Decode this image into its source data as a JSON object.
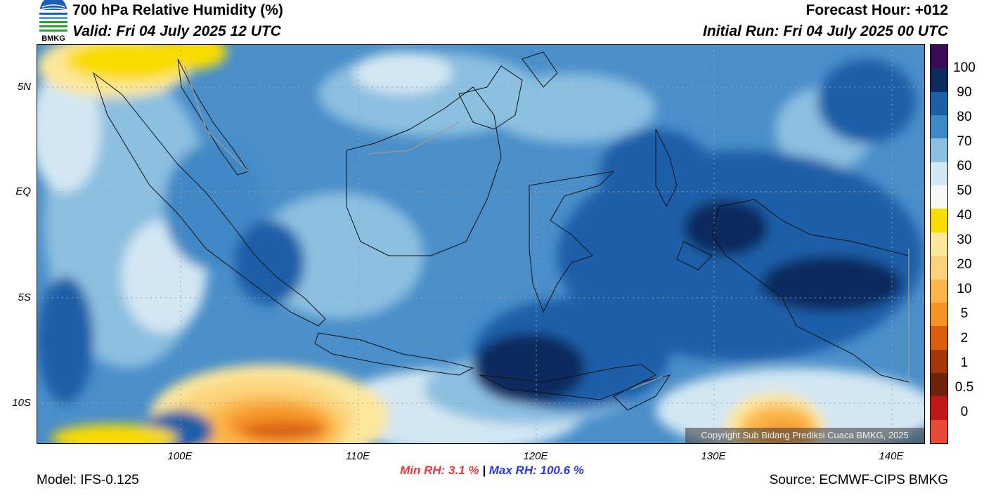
{
  "header": {
    "logo_text": "BMKG",
    "title": "700 hPa Relative Humidity (%)",
    "valid": "Valid: Fri 04 July 2025 12 UTC",
    "forecast_hour": "Forecast Hour: +012",
    "initial_run": "Initial Run: Fri 04 July 2025 00 UTC"
  },
  "map": {
    "lat_labels": [
      "5N",
      "EQ",
      "5S",
      "10S"
    ],
    "lon_labels": [
      "100E",
      "110E",
      "120E",
      "130E",
      "140E"
    ],
    "copyright": "Copyright Sub Bidang Prediksi Cuaca BMKG, 2025"
  },
  "colorbar": {
    "labels": [
      "100",
      "90",
      "80",
      "70",
      "60",
      "50",
      "40",
      "30",
      "20",
      "10",
      "5",
      "2",
      "1",
      "0.5",
      "0"
    ],
    "colors": [
      "#3a0a55",
      "#0d2c5e",
      "#1c5ea8",
      "#3f88c6",
      "#8cbfe0",
      "#d3e7f3",
      "#f7f7f7",
      "#f9dc00",
      "#fde79b",
      "#fcd37c",
      "#fbb54a",
      "#f69226",
      "#d85e0e",
      "#a4370a",
      "#6e240c",
      "#c01818",
      "#e84a38"
    ]
  },
  "stats": {
    "min_label": "Min RH:",
    "min_value": "3.1 %",
    "separator": "|",
    "max_label": "Max RH:",
    "max_value": "100.6 %"
  },
  "footer": {
    "model": "Model: IFS-0.125",
    "source": "Source: ECMWF-CIPS BMKG"
  }
}
